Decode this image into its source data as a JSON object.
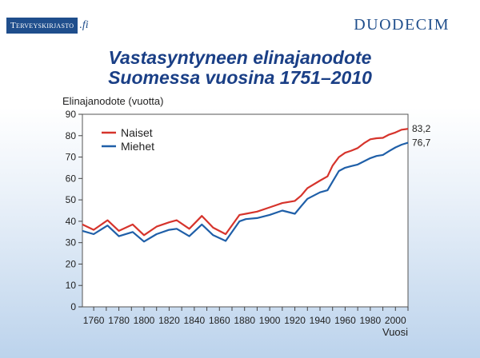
{
  "header": {
    "left_logo": "Terveyskirjasto",
    "left_logo_suffix": ".fi",
    "right_logo": "DUODECIM"
  },
  "title_line1": "Vastasyntyneen elinajanodote",
  "title_line2": "Suomessa vuosina 1751–2010",
  "colors": {
    "naiset": "#d6342c",
    "miehet": "#1f5fa8",
    "title": "#1a3f86"
  },
  "chart_data": {
    "type": "line",
    "ylabel": "Elinajanodote (vuotta)",
    "xlabel": "Vuosi",
    "xlim": [
      1751,
      2010
    ],
    "ylim": [
      0,
      90
    ],
    "yticks": [
      0,
      10,
      20,
      30,
      40,
      50,
      60,
      70,
      80,
      90
    ],
    "xticks": [
      1760,
      1780,
      1800,
      1820,
      1840,
      1860,
      1880,
      1900,
      1920,
      1940,
      1960,
      1980,
      2000
    ],
    "legend_position": "top-left",
    "series": [
      {
        "name": "Naiset",
        "color": "#d6342c",
        "end_label": "83,2",
        "points": [
          [
            1751,
            38.5
          ],
          [
            1760,
            36
          ],
          [
            1771,
            40.5
          ],
          [
            1780,
            35.5
          ],
          [
            1791,
            38.5
          ],
          [
            1800,
            33.5
          ],
          [
            1810,
            37.5
          ],
          [
            1820,
            39.5
          ],
          [
            1826,
            40.5
          ],
          [
            1836,
            36.5
          ],
          [
            1846,
            42.5
          ],
          [
            1855,
            37
          ],
          [
            1865,
            34
          ],
          [
            1876,
            43
          ],
          [
            1881,
            43.5
          ],
          [
            1890,
            44.5
          ],
          [
            1900,
            46.5
          ],
          [
            1910,
            48.5
          ],
          [
            1920,
            49.5
          ],
          [
            1925,
            52
          ],
          [
            1930,
            55.5
          ],
          [
            1940,
            59
          ],
          [
            1946,
            61
          ],
          [
            1950,
            66
          ],
          [
            1955,
            70
          ],
          [
            1960,
            72
          ],
          [
            1965,
            73
          ],
          [
            1970,
            74.2
          ],
          [
            1975,
            76.5
          ],
          [
            1980,
            78.3
          ],
          [
            1985,
            78.8
          ],
          [
            1990,
            79
          ],
          [
            1995,
            80.5
          ],
          [
            2000,
            81.5
          ],
          [
            2005,
            82.8
          ],
          [
            2010,
            83.2
          ]
        ]
      },
      {
        "name": "Miehet",
        "color": "#1f5fa8",
        "end_label": "76,7",
        "points": [
          [
            1751,
            35.5
          ],
          [
            1760,
            34
          ],
          [
            1771,
            38
          ],
          [
            1780,
            33
          ],
          [
            1791,
            35
          ],
          [
            1800,
            30.5
          ],
          [
            1810,
            34
          ],
          [
            1820,
            36
          ],
          [
            1826,
            36.5
          ],
          [
            1836,
            33
          ],
          [
            1846,
            38.5
          ],
          [
            1855,
            33.5
          ],
          [
            1865,
            30.8
          ],
          [
            1876,
            40
          ],
          [
            1881,
            41
          ],
          [
            1890,
            41.5
          ],
          [
            1900,
            43
          ],
          [
            1910,
            45
          ],
          [
            1920,
            43.5
          ],
          [
            1925,
            47
          ],
          [
            1930,
            50.5
          ],
          [
            1940,
            53.5
          ],
          [
            1946,
            54.5
          ],
          [
            1950,
            58.5
          ],
          [
            1955,
            63.5
          ],
          [
            1960,
            65
          ],
          [
            1965,
            65.8
          ],
          [
            1970,
            66.5
          ],
          [
            1975,
            68
          ],
          [
            1980,
            69.5
          ],
          [
            1985,
            70.5
          ],
          [
            1990,
            71
          ],
          [
            1995,
            72.8
          ],
          [
            2000,
            74.5
          ],
          [
            2005,
            75.8
          ],
          [
            2010,
            76.7
          ]
        ]
      }
    ]
  }
}
